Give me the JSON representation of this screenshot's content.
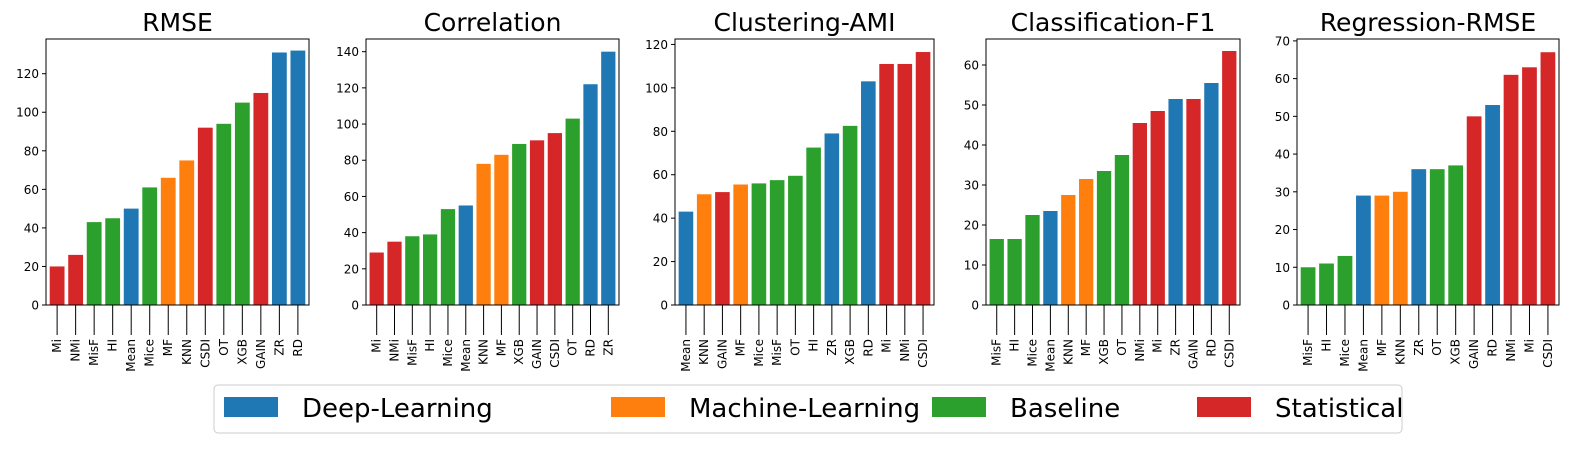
{
  "colors": {
    "Deep-Learning": "#1f77b4",
    "Machine-Learning": "#ff7f0e",
    "Baseline": "#2ca02c",
    "Statistical": "#d62728"
  },
  "legend": {
    "placement": "bottom-center",
    "items": [
      "Deep-Learning",
      "Machine-Learning",
      "Baseline",
      "Statistical"
    ]
  },
  "chart_data": [
    {
      "type": "bar",
      "title": "RMSE",
      "xlabel": "",
      "ylabel": "",
      "ylim": [
        0,
        138
      ],
      "yticks": [
        0,
        20,
        40,
        60,
        80,
        100,
        120
      ],
      "grid": false,
      "categories": [
        "Mi",
        "NMi",
        "MisF",
        "HI",
        "Mean",
        "Mice",
        "MF",
        "KNN",
        "CSDI",
        "OT",
        "XGB",
        "GAIN",
        "ZR",
        "RD"
      ],
      "values": [
        20,
        26,
        43,
        45,
        50,
        61,
        66,
        75,
        92,
        94,
        105,
        110,
        131,
        132
      ],
      "groups": [
        "Statistical",
        "Statistical",
        "Baseline",
        "Baseline",
        "Deep-Learning",
        "Baseline",
        "Machine-Learning",
        "Machine-Learning",
        "Statistical",
        "Baseline",
        "Baseline",
        "Statistical",
        "Deep-Learning",
        "Deep-Learning"
      ]
    },
    {
      "type": "bar",
      "title": "Correlation",
      "xlabel": "",
      "ylabel": "",
      "ylim": [
        0,
        147
      ],
      "yticks": [
        0,
        20,
        40,
        60,
        80,
        100,
        120,
        140
      ],
      "grid": false,
      "categories": [
        "Mi",
        "NMi",
        "MisF",
        "HI",
        "Mice",
        "Mean",
        "KNN",
        "MF",
        "XGB",
        "GAIN",
        "CSDI",
        "OT",
        "RD",
        "ZR"
      ],
      "values": [
        29,
        35,
        38,
        39,
        53,
        55,
        78,
        83,
        89,
        91,
        95,
        103,
        122,
        140
      ],
      "groups": [
        "Statistical",
        "Statistical",
        "Baseline",
        "Baseline",
        "Baseline",
        "Deep-Learning",
        "Machine-Learning",
        "Machine-Learning",
        "Baseline",
        "Statistical",
        "Statistical",
        "Baseline",
        "Deep-Learning",
        "Deep-Learning"
      ]
    },
    {
      "type": "bar",
      "title": "Clustering-AMI",
      "xlabel": "",
      "ylabel": "",
      "ylim": [
        0,
        122.5
      ],
      "yticks": [
        0,
        20,
        40,
        60,
        80,
        100,
        120
      ],
      "grid": false,
      "categories": [
        "Mean",
        "KNN",
        "GAIN",
        "MF",
        "Mice",
        "MisF",
        "OT",
        "HI",
        "ZR",
        "XGB",
        "RD",
        "Mi",
        "NMi",
        "CSDI"
      ],
      "values": [
        43,
        51,
        52,
        55.5,
        56,
        57.5,
        59.5,
        72.5,
        79,
        82.5,
        103,
        111,
        111,
        116.5
      ],
      "groups": [
        "Deep-Learning",
        "Machine-Learning",
        "Statistical",
        "Machine-Learning",
        "Baseline",
        "Baseline",
        "Baseline",
        "Baseline",
        "Deep-Learning",
        "Baseline",
        "Deep-Learning",
        "Statistical",
        "Statistical",
        "Statistical"
      ]
    },
    {
      "type": "bar",
      "title": "Classification-F1",
      "xlabel": "",
      "ylabel": "",
      "ylim": [
        0,
        66.5
      ],
      "yticks": [
        0,
        10,
        20,
        30,
        40,
        50,
        60
      ],
      "grid": false,
      "categories": [
        "MisF",
        "HI",
        "Mice",
        "Mean",
        "KNN",
        "MF",
        "XGB",
        "OT",
        "NMi",
        "Mi",
        "ZR",
        "GAIN",
        "RD",
        "CSDI"
      ],
      "values": [
        16.5,
        16.5,
        22.5,
        23.5,
        27.5,
        31.5,
        33.5,
        37.5,
        45.5,
        48.5,
        51.5,
        51.5,
        55.5,
        63.5
      ],
      "groups": [
        "Baseline",
        "Baseline",
        "Baseline",
        "Deep-Learning",
        "Machine-Learning",
        "Machine-Learning",
        "Baseline",
        "Baseline",
        "Statistical",
        "Statistical",
        "Deep-Learning",
        "Statistical",
        "Deep-Learning",
        "Statistical"
      ]
    },
    {
      "type": "bar",
      "title": "Regression-RMSE",
      "xlabel": "",
      "ylabel": "",
      "ylim": [
        0,
        70.5
      ],
      "yticks": [
        0,
        10,
        20,
        30,
        40,
        50,
        60,
        70
      ],
      "grid": false,
      "categories": [
        "MisF",
        "HI",
        "Mice",
        "Mean",
        "MF",
        "KNN",
        "ZR",
        "OT",
        "XGB",
        "GAIN",
        "RD",
        "NMi",
        "Mi",
        "CSDI"
      ],
      "values": [
        10,
        11,
        13,
        29,
        29,
        30,
        36,
        36,
        37,
        50,
        53,
        61,
        63,
        67
      ],
      "groups": [
        "Baseline",
        "Baseline",
        "Baseline",
        "Deep-Learning",
        "Machine-Learning",
        "Machine-Learning",
        "Deep-Learning",
        "Baseline",
        "Baseline",
        "Statistical",
        "Deep-Learning",
        "Statistical",
        "Statistical",
        "Statistical"
      ]
    }
  ]
}
